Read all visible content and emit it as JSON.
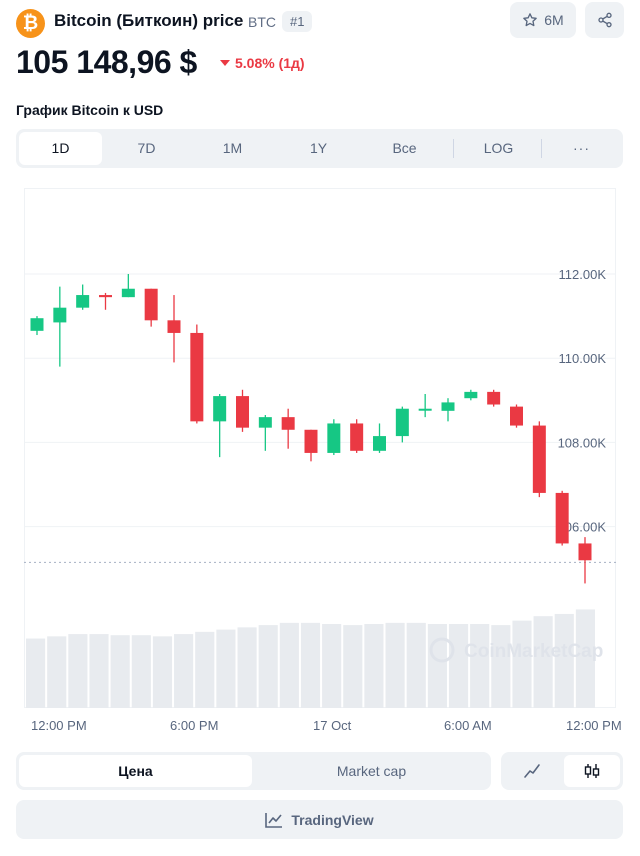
{
  "header": {
    "logo_glyph": "₿",
    "coin_name": "Bitcoin (Биткоин) price",
    "symbol": "BTC",
    "rank": "#1",
    "watchlist_count": "6M"
  },
  "price": {
    "value": "105 148,96 $",
    "change": "5.08% (1д)",
    "direction": "down"
  },
  "chart_title": "График Bitcoin к USD",
  "ranges": [
    "1D",
    "7D",
    "1M",
    "1Y",
    "Все",
    "LOG",
    "···"
  ],
  "active_range": "1D",
  "chart_data": {
    "type": "candlestick",
    "x_labels": [
      "12:00 PM",
      "6:00 PM",
      "17 Oct",
      "6:00 AM",
      "12:00 PM"
    ],
    "y_ticks": [
      {
        "value": 112000,
        "label": "112.00K"
      },
      {
        "value": 110000,
        "label": "110.00K"
      },
      {
        "value": 108000,
        "label": "108.00K"
      },
      {
        "value": 106000,
        "label": "106.00K"
      }
    ],
    "current_price": 105150,
    "watermark": "CoinMarketCap",
    "colors": {
      "up": "#16c784",
      "down": "#ea3943",
      "volume": "#e8ebef",
      "grid": "#eff2f5"
    },
    "candles": [
      {
        "o": 110650,
        "c": 110950,
        "h": 111000,
        "l": 110550
      },
      {
        "o": 110850,
        "c": 111200,
        "h": 111700,
        "l": 109800
      },
      {
        "o": 111200,
        "c": 111500,
        "h": 111750,
        "l": 111150
      },
      {
        "o": 111500,
        "c": 111450,
        "h": 111550,
        "l": 111150
      },
      {
        "o": 111450,
        "c": 111650,
        "h": 112000,
        "l": 111450
      },
      {
        "o": 111650,
        "c": 110900,
        "h": 111650,
        "l": 110750
      },
      {
        "o": 110900,
        "c": 110600,
        "h": 111500,
        "l": 109900
      },
      {
        "o": 110600,
        "c": 108500,
        "h": 110800,
        "l": 108450
      },
      {
        "o": 108500,
        "c": 109100,
        "h": 109150,
        "l": 107650
      },
      {
        "o": 109100,
        "c": 108350,
        "h": 109250,
        "l": 108250
      },
      {
        "o": 108350,
        "c": 108600,
        "h": 108650,
        "l": 107800
      },
      {
        "o": 108600,
        "c": 108300,
        "h": 108800,
        "l": 107850
      },
      {
        "o": 108300,
        "c": 107750,
        "h": 108300,
        "l": 107550
      },
      {
        "o": 107750,
        "c": 108450,
        "h": 108550,
        "l": 107700
      },
      {
        "o": 108450,
        "c": 107800,
        "h": 108550,
        "l": 107750
      },
      {
        "o": 107800,
        "c": 108150,
        "h": 108450,
        "l": 107750
      },
      {
        "o": 108150,
        "c": 108800,
        "h": 108850,
        "l": 108000
      },
      {
        "o": 108800,
        "c": 108800,
        "h": 109150,
        "l": 108600
      },
      {
        "o": 108750,
        "c": 108950,
        "h": 109050,
        "l": 108500
      },
      {
        "o": 109050,
        "c": 109200,
        "h": 109250,
        "l": 109000
      },
      {
        "o": 109200,
        "c": 108900,
        "h": 109250,
        "l": 108850
      },
      {
        "o": 108850,
        "c": 108400,
        "h": 108900,
        "l": 108350
      },
      {
        "o": 108400,
        "c": 106800,
        "h": 108500,
        "l": 106700
      },
      {
        "o": 106800,
        "c": 105600,
        "h": 106850,
        "l": 105550
      },
      {
        "o": 105600,
        "c": 105200,
        "h": 105750,
        "l": 104650
      }
    ],
    "volumes": [
      62,
      64,
      66,
      66,
      65,
      65,
      64,
      66,
      68,
      70,
      72,
      74,
      76,
      76,
      75,
      74,
      75,
      76,
      76,
      75,
      75,
      75,
      74,
      78,
      82,
      84,
      88
    ]
  },
  "toggle": {
    "price": "Цена",
    "market_cap": "Market cap"
  },
  "tradingview_label": "TradingView"
}
